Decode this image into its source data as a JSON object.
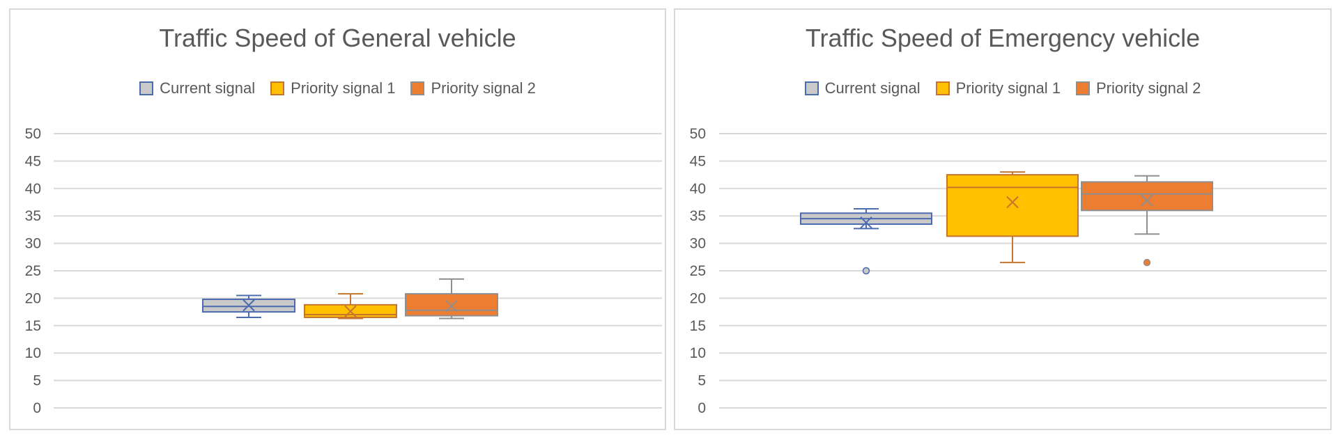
{
  "series_styles": [
    {
      "name": "Current signal",
      "fill": "#c9c9c9",
      "stroke": "#4a6baf"
    },
    {
      "name": "Priority signal 1",
      "fill": "#ffc000",
      "stroke": "#c5752e"
    },
    {
      "name": "Priority signal 2",
      "fill": "#ed7d31",
      "stroke": "#8f8f8f"
    }
  ],
  "chart_data": [
    {
      "type": "box",
      "title": "Traffic Speed of General vehicle",
      "legend": "top",
      "grid": true,
      "ylim": [
        0,
        50
      ],
      "yticks": [
        "0",
        "5",
        "10",
        "15",
        "20",
        "25",
        "30",
        "35",
        "40",
        "45",
        "50"
      ],
      "series": [
        {
          "name": "Current signal",
          "whisker_low": 16.5,
          "q1": 17.5,
          "median": 18.5,
          "q3": 19.8,
          "whisker_high": 20.5,
          "mean": 18.7,
          "outliers": []
        },
        {
          "name": "Priority signal 1",
          "whisker_low": 16.3,
          "q1": 16.5,
          "median": 17.0,
          "q3": 18.8,
          "whisker_high": 20.8,
          "mean": 17.6,
          "outliers": []
        },
        {
          "name": "Priority signal 2",
          "whisker_low": 16.3,
          "q1": 16.8,
          "median": 17.8,
          "q3": 20.8,
          "whisker_high": 23.5,
          "mean": 18.6,
          "outliers": []
        }
      ]
    },
    {
      "type": "box",
      "title": "Traffic Speed of Emergency vehicle",
      "legend": "top",
      "grid": true,
      "ylim": [
        0,
        50
      ],
      "yticks": [
        "0",
        "5",
        "10",
        "15",
        "20",
        "25",
        "30",
        "35",
        "40",
        "45",
        "50"
      ],
      "series": [
        {
          "name": "Current signal",
          "whisker_low": 32.7,
          "q1": 33.5,
          "median": 34.5,
          "q3": 35.5,
          "whisker_high": 36.3,
          "mean": 33.8,
          "outliers": [
            25.0
          ]
        },
        {
          "name": "Priority signal 1",
          "whisker_low": 26.5,
          "q1": 31.3,
          "median": 40.2,
          "q3": 42.5,
          "whisker_high": 43.0,
          "mean": 37.5,
          "outliers": []
        },
        {
          "name": "Priority signal 2",
          "whisker_low": 31.7,
          "q1": 36.0,
          "median": 39.0,
          "q3": 41.2,
          "whisker_high": 42.3,
          "mean": 37.8,
          "outliers": [
            26.5
          ]
        }
      ]
    }
  ]
}
